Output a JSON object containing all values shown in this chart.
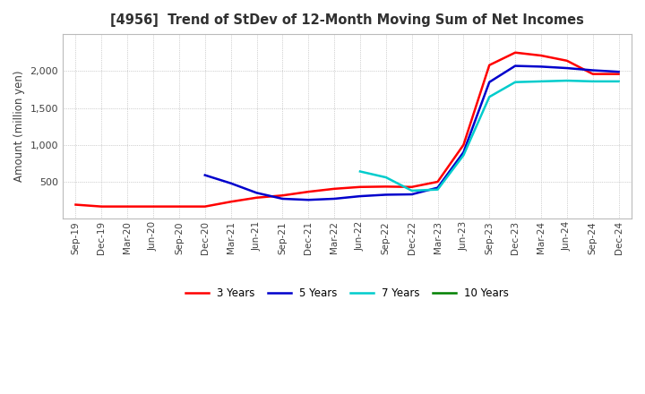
{
  "title": "[4956]  Trend of StDev of 12-Month Moving Sum of Net Incomes",
  "ylabel": "Amount (million yen)",
  "background_color": "#ffffff",
  "grid_color": "#aaaaaa",
  "ylim": [
    0,
    2500
  ],
  "yticks": [
    500,
    1000,
    1500,
    2000
  ],
  "x_labels": [
    "Sep-19",
    "Dec-19",
    "Mar-20",
    "Jun-20",
    "Sep-20",
    "Dec-20",
    "Mar-21",
    "Jun-21",
    "Sep-21",
    "Dec-21",
    "Mar-22",
    "Jun-22",
    "Sep-22",
    "Dec-22",
    "Mar-23",
    "Jun-23",
    "Sep-23",
    "Dec-23",
    "Mar-24",
    "Jun-24",
    "Sep-24",
    "Dec-24"
  ],
  "series": {
    "3 Years": {
      "color": "#ff0000",
      "data": [
        190,
        165,
        165,
        165,
        165,
        165,
        230,
        285,
        315,
        365,
        405,
        430,
        435,
        430,
        500,
        1000,
        2080,
        2250,
        2210,
        2140,
        1960,
        1960
      ]
    },
    "5 Years": {
      "color": "#0000cc",
      "data": [
        null,
        null,
        null,
        null,
        null,
        590,
        480,
        350,
        270,
        255,
        270,
        305,
        325,
        330,
        420,
        900,
        1850,
        2070,
        2060,
        2040,
        2010,
        1990
      ]
    },
    "7 Years": {
      "color": "#00cccc",
      "data": [
        null,
        null,
        null,
        null,
        null,
        null,
        null,
        null,
        null,
        null,
        null,
        640,
        560,
        380,
        395,
        860,
        1650,
        1850,
        1860,
        1870,
        1860,
        1860
      ]
    },
    "10 Years": {
      "color": "#008000",
      "data": [
        null,
        null,
        null,
        null,
        null,
        null,
        null,
        null,
        null,
        null,
        null,
        null,
        null,
        null,
        null,
        null,
        null,
        null,
        null,
        null,
        null,
        null
      ]
    }
  },
  "legend_labels": [
    "3 Years",
    "5 Years",
    "7 Years",
    "10 Years"
  ],
  "legend_colors": [
    "#ff0000",
    "#0000cc",
    "#00cccc",
    "#008000"
  ]
}
